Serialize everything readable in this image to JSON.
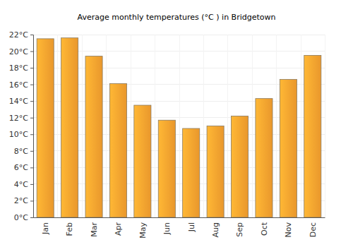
{
  "chart_data": {
    "type": "bar",
    "title": "Average monthly temperatures (°C ) in Bridgetown",
    "categories": [
      "Jan",
      "Feb",
      "Mar",
      "Apr",
      "May",
      "Jun",
      "Jul",
      "Aug",
      "Sep",
      "Oct",
      "Nov",
      "Dec"
    ],
    "values": [
      21.5,
      21.6,
      19.4,
      16.1,
      13.5,
      11.7,
      10.7,
      11.0,
      12.2,
      14.3,
      16.6,
      19.5
    ],
    "color": "#ffa530",
    "ylim": [
      0,
      22
    ],
    "yticks": [
      {
        "value": 0,
        "label": "0°C"
      },
      {
        "value": 2,
        "label": "2°C"
      },
      {
        "value": 4,
        "label": "4°C"
      },
      {
        "value": 6,
        "label": "6°C"
      },
      {
        "value": 8,
        "label": "8°C"
      },
      {
        "value": 10,
        "label": "10°C"
      },
      {
        "value": 12,
        "label": "12°C"
      },
      {
        "value": 14,
        "label": "14°C"
      },
      {
        "value": 16,
        "label": "16°C"
      },
      {
        "value": 18,
        "label": "18°C"
      },
      {
        "value": 20,
        "label": "20°C"
      },
      {
        "value": 22,
        "label": "22°C"
      }
    ],
    "grid": true
  }
}
